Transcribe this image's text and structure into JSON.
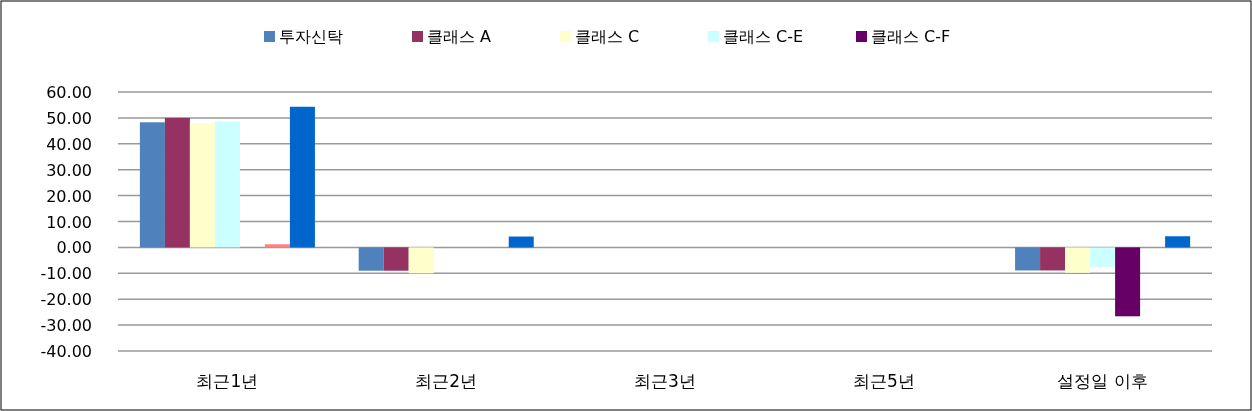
{
  "chart_data": {
    "type": "bar",
    "categories": [
      "최근1년",
      "최근2년",
      "최근3년",
      "최근5년",
      "설정일 이후"
    ],
    "series": [
      {
        "name": "투자신탁",
        "color": "#4f81bd",
        "values": [
          48.3,
          -9.0,
          null,
          null,
          -8.9
        ]
      },
      {
        "name": "클래스 A",
        "color": "#953262",
        "values": [
          50.0,
          -9.0,
          null,
          null,
          -8.9
        ]
      },
      {
        "name": "클래스 C",
        "color": "#ffffcc",
        "values": [
          48.0,
          -10.0,
          null,
          null,
          -9.8
        ]
      },
      {
        "name": "클래스 C-E",
        "color": "#ccffff",
        "values": [
          48.6,
          null,
          null,
          null,
          -7.5
        ]
      },
      {
        "name": "클래스 C-F",
        "color": "#660066",
        "values": [
          null,
          null,
          null,
          null,
          -26.6
        ]
      },
      {
        "color": "#ff8080",
        "values": [
          1.2,
          null,
          null,
          null,
          null
        ]
      },
      {
        "color": "#0066cc",
        "values": [
          54.3,
          4.2,
          null,
          null,
          4.3
        ]
      }
    ],
    "ylim": [
      -40,
      60
    ],
    "yticks": [
      {
        "value": 60,
        "label": "60.00"
      },
      {
        "value": 50,
        "label": "50.00"
      },
      {
        "value": 40,
        "label": "40.00"
      },
      {
        "value": 30,
        "label": "30.00"
      },
      {
        "value": 20,
        "label": "20.00"
      },
      {
        "value": 10,
        "label": "10.00"
      },
      {
        "value": 0,
        "label": "0.00"
      },
      {
        "value": -10,
        "label": "-10.00"
      },
      {
        "value": -20,
        "label": "-20.00"
      },
      {
        "value": -30,
        "label": "-30.00"
      },
      {
        "value": -40,
        "label": "-40.00"
      }
    ],
    "grid": "y",
    "legend": "top"
  }
}
